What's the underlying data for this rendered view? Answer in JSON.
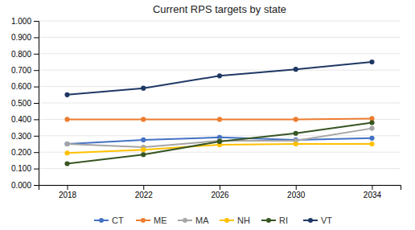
{
  "chart_data": {
    "type": "line",
    "title": "Current RPS targets by state",
    "x": [
      2018,
      2022,
      2026,
      2030,
      2034
    ],
    "series": [
      {
        "name": "CT",
        "color": "#4472C4",
        "marker": "circle",
        "values": [
          0.25,
          0.275,
          0.29,
          0.275,
          0.285
        ]
      },
      {
        "name": "ME",
        "color": "#ED7D31",
        "marker": "circle",
        "values": [
          0.4,
          0.4,
          0.4,
          0.4,
          0.405
        ]
      },
      {
        "name": "MA",
        "color": "#A5A5A5",
        "marker": "circle",
        "values": [
          0.25,
          0.23,
          0.27,
          0.27,
          0.345
        ]
      },
      {
        "name": "NH",
        "color": "#FFC000",
        "marker": "circle",
        "values": [
          0.195,
          0.215,
          0.245,
          0.25,
          0.25
        ]
      },
      {
        "name": "RI",
        "color": "#375623",
        "marker": "circle",
        "values": [
          0.13,
          0.185,
          0.265,
          0.315,
          0.38
        ]
      },
      {
        "name": "VT",
        "color": "#1F3864",
        "marker": "circle",
        "values": [
          0.55,
          0.59,
          0.665,
          0.705,
          0.75
        ]
      }
    ],
    "xlim": [
      2016.5,
      2035.5
    ],
    "xticks": [
      2018,
      2022,
      2026,
      2030,
      2034
    ],
    "ylim": [
      0.0,
      1.0
    ],
    "yticks": [
      {
        "value": 0.0,
        "label": "0.000"
      },
      {
        "value": 0.1,
        "label": "0.100"
      },
      {
        "value": 0.2,
        "label": "0.200"
      },
      {
        "value": 0.3,
        "label": "0.300"
      },
      {
        "value": 0.4,
        "label": "0.400"
      },
      {
        "value": 0.5,
        "label": "0.500"
      },
      {
        "value": 0.6,
        "label": "0.600"
      },
      {
        "value": 0.7,
        "label": "0.700"
      },
      {
        "value": 0.8,
        "label": "0.800"
      },
      {
        "value": 0.9,
        "label": "0.900"
      },
      {
        "value": 1.0,
        "label": "1.000"
      }
    ],
    "grid": true,
    "legend": "bottom"
  }
}
